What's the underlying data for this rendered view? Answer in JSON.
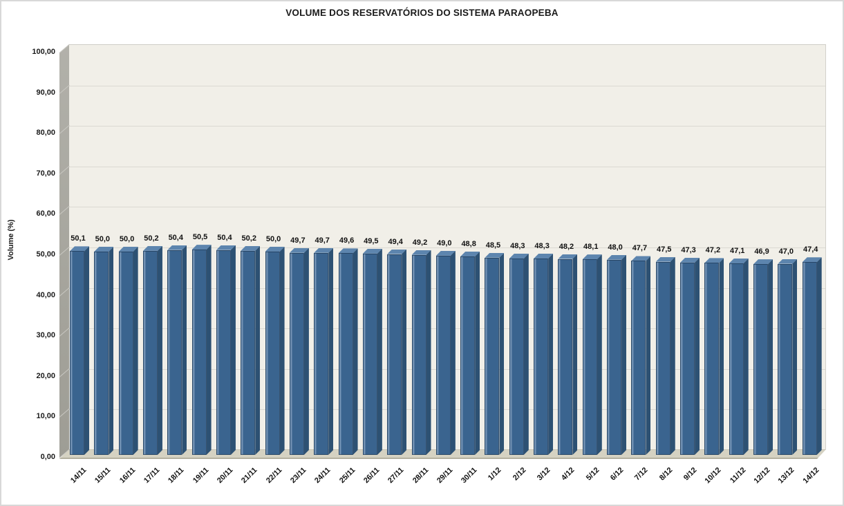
{
  "chart_data": {
    "type": "bar",
    "title": "VOLUME DOS RESERVATÓRIOS DO SISTEMA PARAOPEBA",
    "xlabel": "",
    "ylabel": "Volume (%)",
    "ylim": [
      0,
      100
    ],
    "grid": true,
    "legend": "none",
    "style": "3d-column",
    "categories": [
      "14/11",
      "15/11",
      "16/11",
      "17/11",
      "18/11",
      "19/11",
      "20/11",
      "21/11",
      "22/11",
      "23/11",
      "24/11",
      "25/11",
      "26/11",
      "27/11",
      "28/11",
      "29/11",
      "30/11",
      "1/12",
      "2/12",
      "3/12",
      "4/12",
      "5/12",
      "6/12",
      "7/12",
      "8/12",
      "9/12",
      "10/12",
      "11/12",
      "12/12",
      "13/12",
      "14/12"
    ],
    "values": [
      50.1,
      50.0,
      50.0,
      50.2,
      50.4,
      50.5,
      50.4,
      50.2,
      50.0,
      49.7,
      49.7,
      49.6,
      49.5,
      49.4,
      49.2,
      49.0,
      48.8,
      48.5,
      48.3,
      48.3,
      48.2,
      48.1,
      48.0,
      47.7,
      47.5,
      47.3,
      47.2,
      47.1,
      46.9,
      47.0,
      47.4
    ],
    "value_labels": [
      "50,1",
      "50,0",
      "50,0",
      "50,2",
      "50,4",
      "50,5",
      "50,4",
      "50,2",
      "50,0",
      "49,7",
      "49,7",
      "49,6",
      "49,5",
      "49,4",
      "49,2",
      "49,0",
      "48,8",
      "48,5",
      "48,3",
      "48,3",
      "48,2",
      "48,1",
      "48,0",
      "47,7",
      "47,5",
      "47,3",
      "47,2",
      "47,1",
      "46,9",
      "47,0",
      "47,4"
    ],
    "y_tick_values": [
      0,
      10,
      20,
      30,
      40,
      50,
      60,
      70,
      80,
      90,
      100
    ],
    "y_tick_labels": [
      "0,00",
      "10,00",
      "20,00",
      "30,00",
      "40,00",
      "50,00",
      "60,00",
      "70,00",
      "80,00",
      "90,00",
      "100,00"
    ],
    "colors": {
      "bar_front": "#3a648f",
      "bar_front_highlight": "#7191b3",
      "bar_top": "#5d85ae",
      "bar_side": "#2d5173",
      "plot_background": "#f1efe8",
      "gridline": "#dbd9d2",
      "side_wall": "#a5a49c",
      "floor": "#d5d2c2",
      "title_color": "#1a1a1a"
    }
  }
}
